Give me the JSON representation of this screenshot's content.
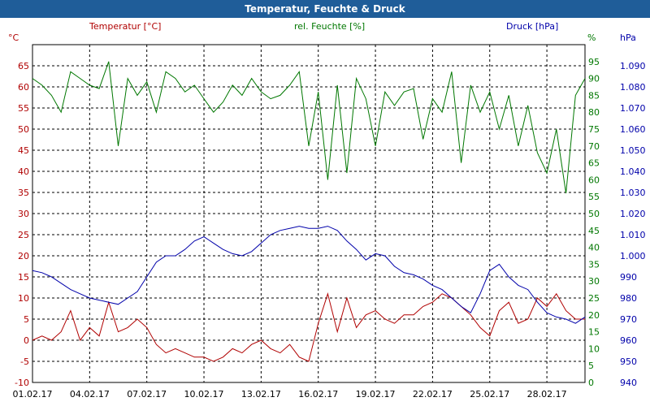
{
  "window": {
    "title": "Temperatur, Feuchte & Druck"
  },
  "chart_data": {
    "type": "line",
    "title": "Temperatur, Feuchte & Druck",
    "x_labels": [
      "01.02.17",
      "04.02.17",
      "07.02.17",
      "10.02.17",
      "13.02.17",
      "16.02.17",
      "19.02.17",
      "22.02.17",
      "25.02.17",
      "28.02.17"
    ],
    "x_range": [
      0,
      29
    ],
    "colors": {
      "temperature": "#b00000",
      "humidity": "#007700",
      "pressure": "#0000aa"
    },
    "axes": {
      "temperature": {
        "label": "Temperatur [°C]",
        "unit": "°C",
        "range": [
          -10,
          70
        ],
        "ticks": [
          "-10",
          "-5",
          "0",
          "5",
          "10",
          "15",
          "20",
          "25",
          "30",
          "35",
          "40",
          "45",
          "50",
          "55",
          "60",
          "65"
        ]
      },
      "humidity": {
        "label": "rel. Feuchte [%]",
        "unit": "%",
        "range": [
          0,
          100
        ],
        "ticks": [
          "0",
          "5",
          "10",
          "15",
          "20",
          "25",
          "30",
          "35",
          "40",
          "45",
          "50",
          "55",
          "60",
          "65",
          "70",
          "75",
          "80",
          "85",
          "90",
          "95"
        ]
      },
      "pressure": {
        "label": "Druck [hPa]",
        "unit": "hPa",
        "range": [
          940,
          1100
        ],
        "ticks": [
          "940",
          "950",
          "960",
          "970",
          "980",
          "990",
          "1.000",
          "1.010",
          "1.020",
          "1.030",
          "1.040",
          "1.050",
          "1.060",
          "1.070",
          "1.080",
          "1.090"
        ]
      }
    },
    "series": [
      {
        "name": "Temperatur",
        "axis": "temperature",
        "color": "#b00000",
        "x": [
          0,
          0.5,
          1,
          1.5,
          2,
          2.5,
          3,
          3.5,
          4,
          4.5,
          5,
          5.5,
          6,
          6.5,
          7,
          7.5,
          8,
          8.5,
          9,
          9.5,
          10,
          10.5,
          11,
          11.5,
          12,
          12.5,
          13,
          13.5,
          14,
          14.5,
          15,
          15.5,
          16,
          16.5,
          17,
          17.5,
          18,
          18.5,
          19,
          19.5,
          20,
          20.5,
          21,
          21.5,
          22,
          22.5,
          23,
          23.5,
          24,
          24.5,
          25,
          25.5,
          26,
          26.5,
          27,
          27.5,
          28,
          28.5,
          29
        ],
        "values": [
          0,
          1,
          0,
          2,
          7,
          0,
          3,
          1,
          9,
          2,
          3,
          5,
          3,
          -1,
          -3,
          -2,
          -3,
          -4,
          -4,
          -5,
          -4,
          -2,
          -3,
          -1,
          0,
          -2,
          -3,
          -1,
          -4,
          -5,
          4,
          11,
          2,
          10,
          3,
          6,
          7,
          5,
          4,
          6,
          6,
          8,
          9,
          11,
          10,
          8,
          6,
          3,
          1,
          7,
          9,
          4,
          5,
          10,
          8,
          11,
          7,
          5,
          5
        ]
      },
      {
        "name": "rel. Feuchte",
        "axis": "humidity",
        "color": "#007700",
        "x": [
          0,
          0.5,
          1,
          1.5,
          2,
          2.5,
          3,
          3.5,
          4,
          4.5,
          5,
          5.5,
          6,
          6.5,
          7,
          7.5,
          8,
          8.5,
          9,
          9.5,
          10,
          10.5,
          11,
          11.5,
          12,
          12.5,
          13,
          13.5,
          14,
          14.5,
          15,
          15.5,
          16,
          16.5,
          17,
          17.5,
          18,
          18.5,
          19,
          19.5,
          20,
          20.5,
          21,
          21.5,
          22,
          22.5,
          23,
          23.5,
          24,
          24.5,
          25,
          25.5,
          26,
          26.5,
          27,
          27.5,
          28,
          28.5,
          29
        ],
        "values": [
          90,
          88,
          85,
          80,
          92,
          90,
          88,
          87,
          95,
          70,
          90,
          85,
          89,
          80,
          92,
          90,
          86,
          88,
          84,
          80,
          83,
          88,
          85,
          90,
          86,
          84,
          85,
          88,
          92,
          70,
          86,
          60,
          88,
          62,
          90,
          84,
          70,
          86,
          82,
          86,
          87,
          72,
          84,
          80,
          92,
          65,
          88,
          80,
          86,
          75,
          85,
          70,
          82,
          68,
          62,
          75,
          56,
          85,
          90
        ]
      },
      {
        "name": "Druck",
        "axis": "pressure",
        "color": "#0000aa",
        "x": [
          0,
          0.5,
          1,
          1.5,
          2,
          2.5,
          3,
          3.5,
          4,
          4.5,
          5,
          5.5,
          6,
          6.5,
          7,
          7.5,
          8,
          8.5,
          9,
          9.5,
          10,
          10.5,
          11,
          11.5,
          12,
          12.5,
          13,
          13.5,
          14,
          14.5,
          15,
          15.5,
          16,
          16.5,
          17,
          17.5,
          18,
          18.5,
          19,
          19.5,
          20,
          20.5,
          21,
          21.5,
          22,
          22.5,
          23,
          23.5,
          24,
          24.5,
          25,
          25.5,
          26,
          26.5,
          27,
          27.5,
          28,
          28.5,
          29
        ],
        "values": [
          993,
          992,
          990,
          987,
          984,
          982,
          980,
          979,
          978,
          977,
          980,
          983,
          990,
          997,
          1000,
          1000,
          1003,
          1007,
          1009,
          1006,
          1003,
          1001,
          1000,
          1002,
          1006,
          1010,
          1012,
          1013,
          1014,
          1013,
          1013,
          1014,
          1012,
          1007,
          1003,
          998,
          1001,
          1000,
          995,
          992,
          991,
          989,
          986,
          984,
          980,
          976,
          973,
          982,
          993,
          996,
          990,
          986,
          984,
          978,
          973,
          971,
          970,
          968,
          971
        ]
      }
    ]
  }
}
